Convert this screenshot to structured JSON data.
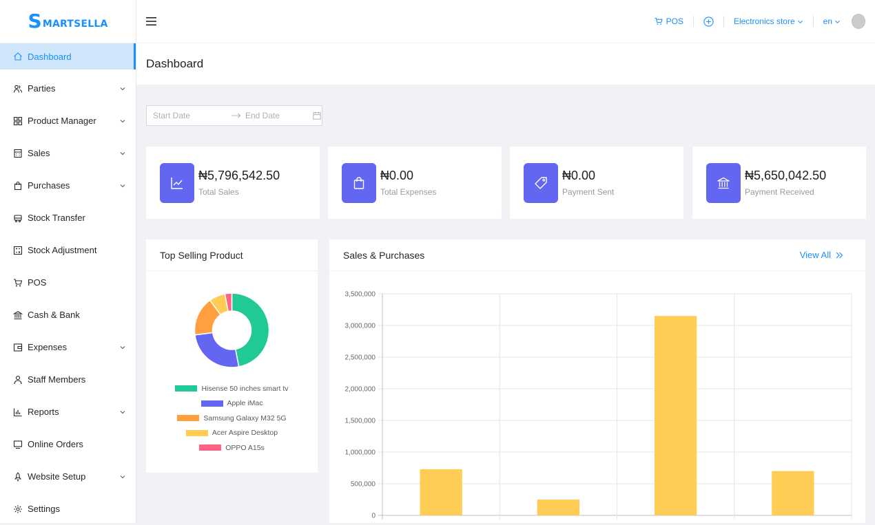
{
  "brand": {
    "initial": "S",
    "rest": "MARTSELLA"
  },
  "sidebar": {
    "items": [
      {
        "label": "Dashboard",
        "icon": "home-icon",
        "active": true,
        "expandable": false
      },
      {
        "label": "Parties",
        "icon": "users-icon",
        "expandable": true
      },
      {
        "label": "Product Manager",
        "icon": "grid-icon",
        "expandable": true
      },
      {
        "label": "Sales",
        "icon": "calculator-icon",
        "expandable": true
      },
      {
        "label": "Purchases",
        "icon": "shopping-bag-icon",
        "expandable": true
      },
      {
        "label": "Stock Transfer",
        "icon": "truck-icon",
        "expandable": false
      },
      {
        "label": "Stock Adjustment",
        "icon": "adjust-icon",
        "expandable": false
      },
      {
        "label": "POS",
        "icon": "cart-icon",
        "expandable": false
      },
      {
        "label": "Cash & Bank",
        "icon": "bank-icon",
        "expandable": false
      },
      {
        "label": "Expenses",
        "icon": "wallet-icon",
        "expandable": true
      },
      {
        "label": "Staff Members",
        "icon": "user-icon",
        "expandable": false
      },
      {
        "label": "Reports",
        "icon": "bar-chart-icon",
        "expandable": true
      },
      {
        "label": "Online Orders",
        "icon": "monitor-icon",
        "expandable": false
      },
      {
        "label": "Website Setup",
        "icon": "rocket-icon",
        "expandable": true
      },
      {
        "label": "Settings",
        "icon": "gear-icon",
        "expandable": false
      }
    ]
  },
  "header": {
    "pos_label": "POS",
    "store_label": "Electronics store",
    "lang_label": "en"
  },
  "page": {
    "title": "Dashboard"
  },
  "daterange": {
    "start_placeholder": "Start Date",
    "end_placeholder": "End Date"
  },
  "stats": [
    {
      "value": "₦5,796,542.50",
      "label": "Total Sales",
      "icon": "line-chart-icon"
    },
    {
      "value": "₦0.00",
      "label": "Total Expenses",
      "icon": "shopping-bag-icon"
    },
    {
      "value": "₦0.00",
      "label": "Payment Sent",
      "icon": "tag-icon"
    },
    {
      "value": "₦5,650,042.50",
      "label": "Payment Received",
      "icon": "bank-icon"
    }
  ],
  "colors": {
    "accent": "#1890ff",
    "stat_icon_bg": "#6366f1",
    "bar": "#ffcd56"
  },
  "top_selling": {
    "title": "Top Selling Product"
  },
  "sales_purchases": {
    "title": "Sales & Purchases",
    "view_all": "View All"
  },
  "chart_data": [
    {
      "type": "pie",
      "title": "Top Selling Product",
      "legend_position": "bottom",
      "labels": [
        "Hisense 50 inches smart tv",
        "Apple iMac",
        "Samsung Galaxy M32 5G",
        "Acer Aspire Desktop",
        "OPPO A15s"
      ],
      "values": [
        47,
        26,
        17,
        7,
        3
      ],
      "colors": [
        "#21c997",
        "#6366f1",
        "#ff9f40",
        "#ffcd56",
        "#ff6384"
      ]
    },
    {
      "type": "bar",
      "title": "Sales & Purchases",
      "categories": [
        "",
        "",
        "",
        ""
      ],
      "values": [
        730000,
        250000,
        3150000,
        700000
      ],
      "ylim": [
        0,
        3500000
      ],
      "yticks": [
        0,
        500000,
        1000000,
        1500000,
        2000000,
        2500000,
        3000000,
        3500000
      ],
      "ytick_labels": [
        "0",
        "500,000",
        "1,000,000",
        "1,500,000",
        "2,000,000",
        "2,500,000",
        "3,000,000",
        "3,500,000"
      ],
      "grid": true,
      "color": "#ffcd56"
    }
  ]
}
